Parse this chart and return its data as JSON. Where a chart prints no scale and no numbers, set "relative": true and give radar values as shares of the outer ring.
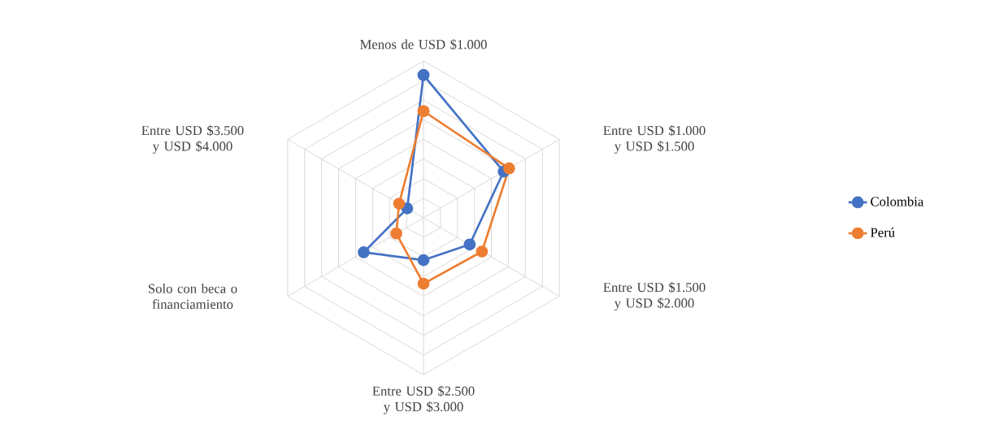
{
  "chart_data": {
    "type": "radar",
    "relative": true,
    "categories": [
      "Menos de USD $1.000",
      "Entre USD $1.000 y USD $1.500",
      "Entre USD $1.500 y USD $2.000",
      "Entre USD $2.500 y USD $3.000",
      "Solo con beca o financiamiento",
      "Entre USD $3.500 y USD $4.000"
    ],
    "series": [
      {
        "name": "Colombia",
        "color": "#4472c4",
        "values": [
          0.91,
          0.59,
          0.34,
          0.27,
          0.44,
          0.12
        ]
      },
      {
        "name": "Perú",
        "color": "#ed7d31",
        "values": [
          0.68,
          0.63,
          0.43,
          0.42,
          0.2,
          0.18
        ]
      }
    ],
    "legend": "right",
    "marker": "circle",
    "grid": true
  }
}
